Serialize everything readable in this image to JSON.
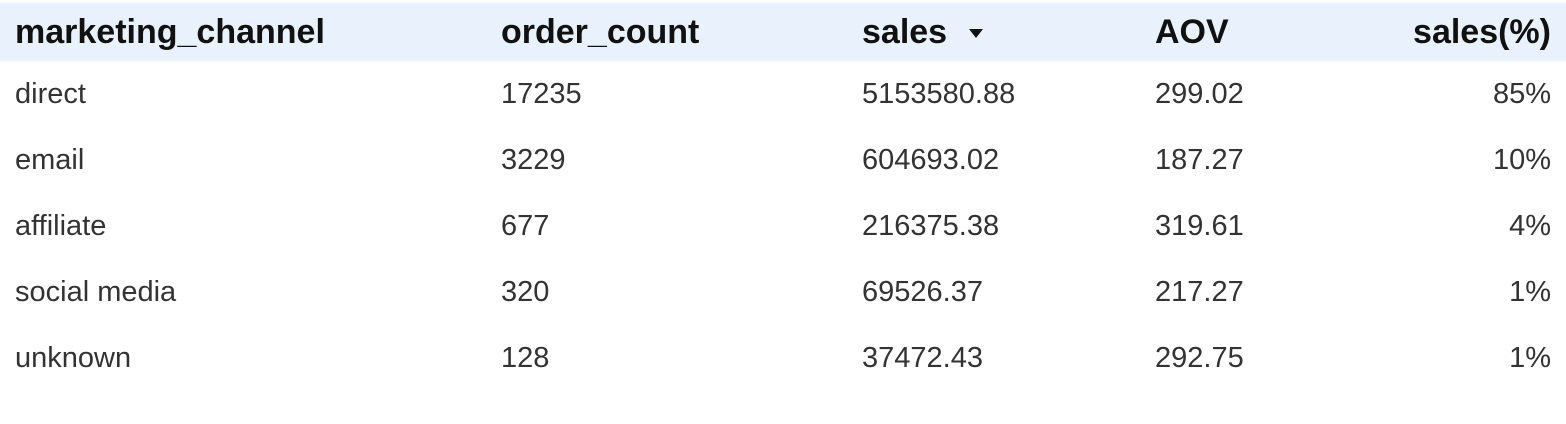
{
  "table": {
    "columns": [
      {
        "key": "marketing_channel",
        "label": "marketing_channel"
      },
      {
        "key": "order_count",
        "label": "order_count"
      },
      {
        "key": "sales",
        "label": "sales",
        "sort": "descending"
      },
      {
        "key": "AOV",
        "label": "AOV"
      },
      {
        "key": "sales_pct",
        "label": "sales(%)"
      }
    ],
    "rows": [
      [
        "direct",
        "17235",
        "5153580.88",
        "299.02",
        "85%"
      ],
      [
        "email",
        "3229",
        "604693.02",
        "187.27",
        "10%"
      ],
      [
        "affiliate",
        "677",
        "216375.38",
        "319.61",
        "4%"
      ],
      [
        "social media",
        "320",
        "69526.37",
        "217.27",
        "1%"
      ],
      [
        "unknown",
        "128",
        "37472.43",
        "292.75",
        "1%"
      ]
    ]
  },
  "colors": {
    "header_background": "#e9f1fd",
    "header_text": "#111111",
    "body_text": "#333333"
  },
  "icons": {
    "sort": "sort-descending-icon"
  }
}
